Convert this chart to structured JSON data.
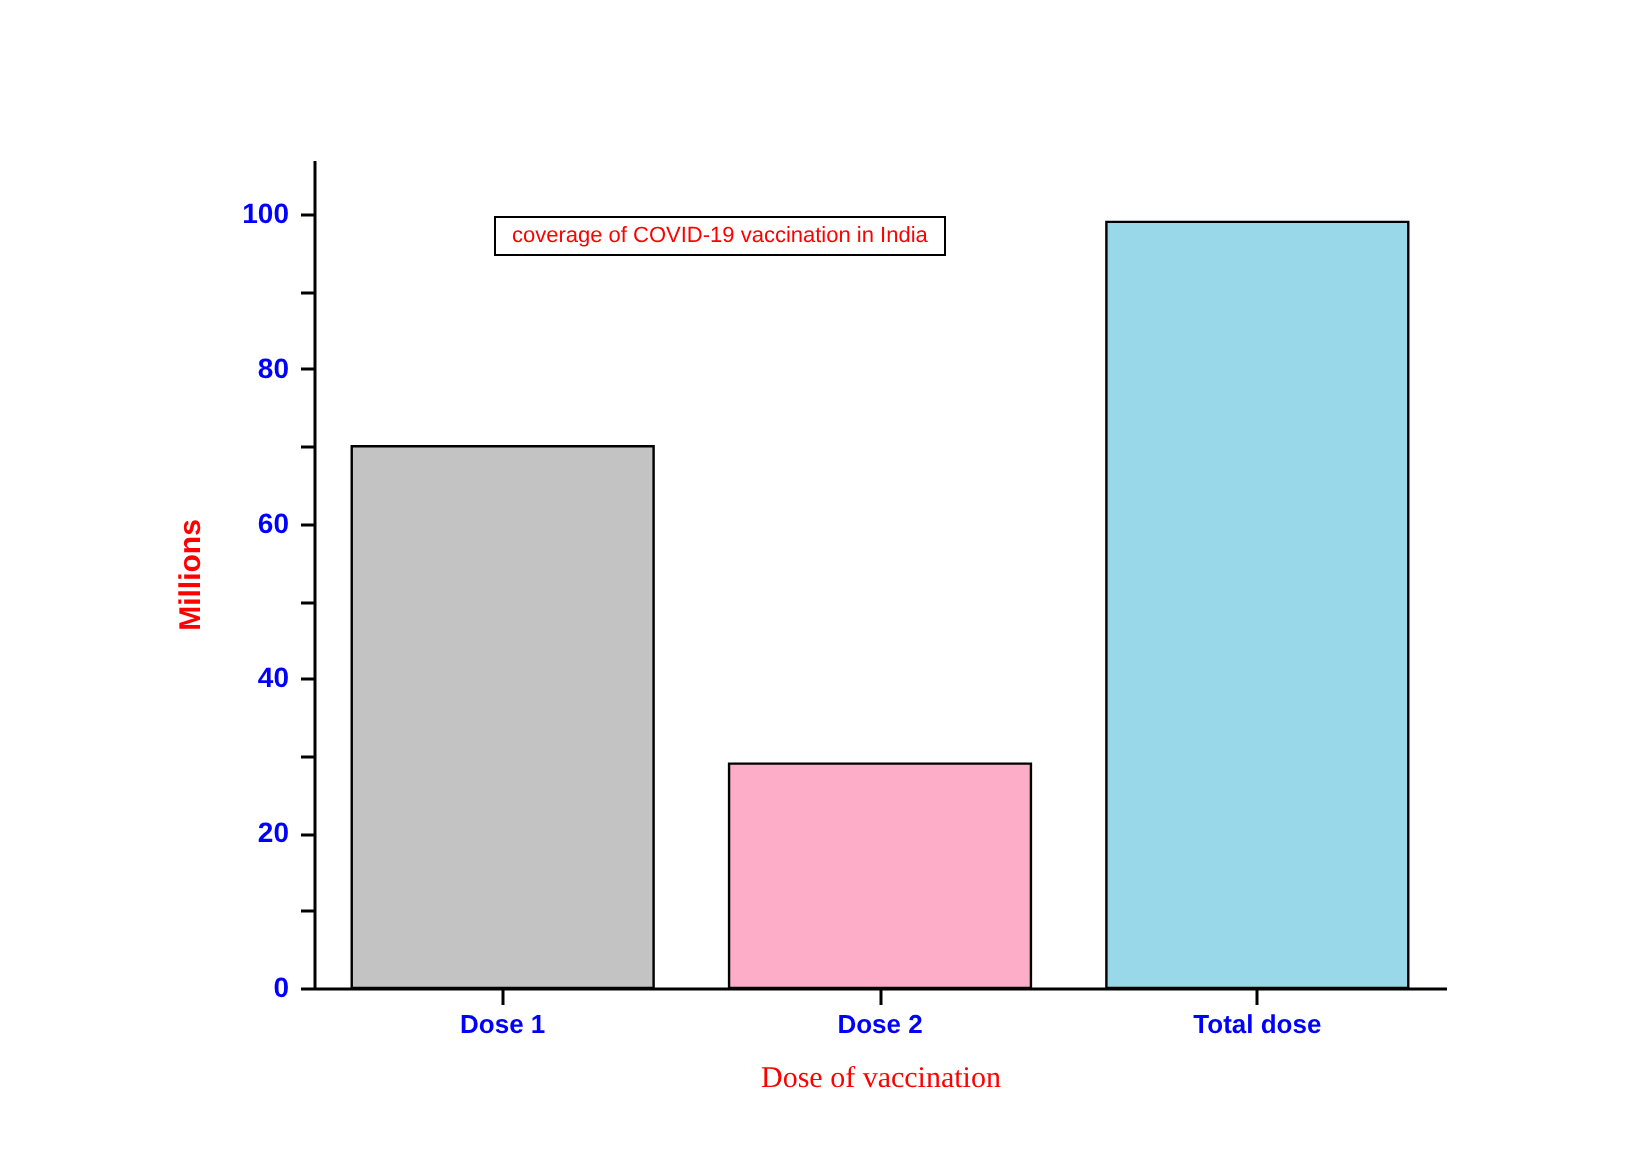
{
  "chart_data": {
    "type": "bar",
    "annotations": [
      "coverage of COVID-19 vaccination in India"
    ],
    "xlabel": "Dose of vaccination",
    "ylabel": "Millions",
    "categories": [
      "Dose 1",
      "Dose 2",
      "Total dose"
    ],
    "values": [
      70,
      29,
      99
    ],
    "colors": [
      "#c3c3c3",
      "#feadc9",
      "#99d8e8"
    ],
    "ylim": [
      0,
      107
    ],
    "yticks": [
      0,
      {
        "value": 10,
        "label": null
      },
      20,
      {
        "value": 30,
        "label": null
      },
      40,
      {
        "value": 50,
        "label": null
      },
      60,
      {
        "value": 70,
        "label": null
      },
      80,
      {
        "value": 90,
        "label": null
      },
      100
    ],
    "grid": false,
    "legend": false
  }
}
